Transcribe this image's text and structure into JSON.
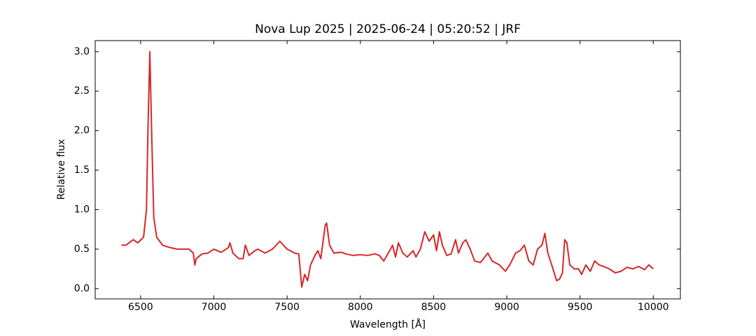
{
  "chart_data": {
    "type": "line",
    "title": "Nova Lup 2025 | 2025-06-24 | 05:20:52 | JRF",
    "xlabel": "Wavelength [Å]",
    "ylabel": "Relative flux",
    "color": "#d62728",
    "x": [
      6370,
      6400,
      6450,
      6480,
      6520,
      6540,
      6550,
      6563,
      6575,
      6590,
      6610,
      6650,
      6700,
      6750,
      6800,
      6830,
      6860,
      6870,
      6880,
      6920,
      6960,
      7000,
      7050,
      7100,
      7110,
      7130,
      7170,
      7200,
      7215,
      7240,
      7280,
      7300,
      7350,
      7400,
      7450,
      7500,
      7550,
      7580,
      7600,
      7620,
      7640,
      7660,
      7690,
      7710,
      7730,
      7760,
      7770,
      7790,
      7820,
      7870,
      7900,
      7950,
      8000,
      8050,
      8100,
      8130,
      8160,
      8200,
      8220,
      8240,
      8260,
      8290,
      8320,
      8360,
      8380,
      8410,
      8440,
      8470,
      8500,
      8520,
      8540,
      8560,
      8590,
      8620,
      8650,
      8670,
      8700,
      8720,
      8750,
      8780,
      8820,
      8870,
      8900,
      8950,
      8990,
      9020,
      9060,
      9090,
      9120,
      9150,
      9180,
      9210,
      9240,
      9260,
      9280,
      9310,
      9340,
      9360,
      9380,
      9395,
      9410,
      9430,
      9460,
      9490,
      9510,
      9540,
      9570,
      9600,
      9630,
      9660,
      9700,
      9740,
      9780,
      9820,
      9860,
      9900,
      9940,
      9970,
      10000
    ],
    "values": [
      0.55,
      0.55,
      0.62,
      0.58,
      0.65,
      1.0,
      2.0,
      3.0,
      2.0,
      0.9,
      0.65,
      0.55,
      0.52,
      0.5,
      0.5,
      0.5,
      0.45,
      0.3,
      0.38,
      0.44,
      0.45,
      0.5,
      0.46,
      0.52,
      0.58,
      0.45,
      0.38,
      0.38,
      0.55,
      0.42,
      0.48,
      0.5,
      0.45,
      0.5,
      0.6,
      0.5,
      0.45,
      0.44,
      0.02,
      0.18,
      0.1,
      0.3,
      0.42,
      0.48,
      0.38,
      0.8,
      0.83,
      0.55,
      0.45,
      0.46,
      0.44,
      0.42,
      0.43,
      0.42,
      0.44,
      0.42,
      0.35,
      0.48,
      0.55,
      0.4,
      0.58,
      0.45,
      0.4,
      0.48,
      0.4,
      0.5,
      0.72,
      0.6,
      0.68,
      0.48,
      0.72,
      0.55,
      0.42,
      0.44,
      0.62,
      0.45,
      0.58,
      0.62,
      0.5,
      0.35,
      0.33,
      0.45,
      0.35,
      0.3,
      0.22,
      0.3,
      0.45,
      0.48,
      0.55,
      0.35,
      0.3,
      0.5,
      0.55,
      0.7,
      0.45,
      0.28,
      0.1,
      0.12,
      0.2,
      0.62,
      0.58,
      0.3,
      0.25,
      0.25,
      0.18,
      0.3,
      0.22,
      0.35,
      0.3,
      0.28,
      0.25,
      0.2,
      0.22,
      0.27,
      0.25,
      0.28,
      0.24,
      0.3,
      0.25
    ],
    "xlim": [
      6190,
      10185
    ],
    "ylim": [
      -0.13,
      3.14
    ],
    "xticks": [
      6500,
      7000,
      7500,
      8000,
      8500,
      9000,
      9500,
      10000
    ],
    "yticks": [
      {
        "value": 0,
        "label": "0.0"
      },
      0.5,
      {
        "value": 1,
        "label": "1.0"
      },
      1.5,
      {
        "value": 2,
        "label": "2.0"
      },
      2.5,
      {
        "value": 3,
        "label": "3.0"
      }
    ]
  }
}
